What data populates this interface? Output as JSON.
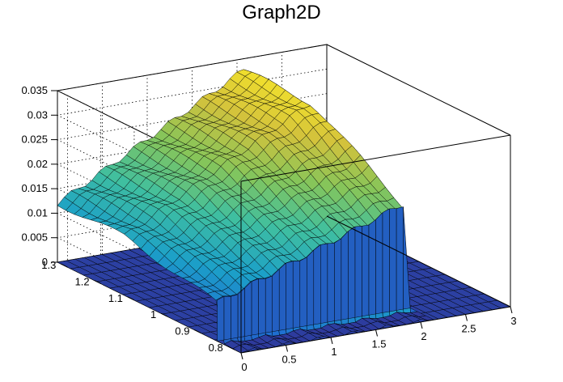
{
  "chart_data": {
    "type": "surface3d",
    "title": "Graph2D",
    "x": {
      "label": "",
      "range": [
        0,
        3
      ],
      "ticks": [
        "0",
        "0.5",
        "1",
        "1.5",
        "2",
        "2.5",
        "3"
      ]
    },
    "y": {
      "label": "",
      "range": [
        0.78,
        1.33
      ],
      "ticks": [
        "0.8",
        "0.9",
        "1",
        "1.1",
        "1.2",
        "1.3"
      ]
    },
    "z": {
      "label": "",
      "range": [
        0,
        0.035
      ],
      "ticks": [
        "0",
        "0.005",
        "0.01",
        "0.015",
        "0.02",
        "0.025",
        "0.03",
        "0.035"
      ]
    },
    "grid": true,
    "colormap": "viridis-like (blue to yellow)",
    "colors": [
      "#2e3a9c",
      "#1f6fd1",
      "#1ca0c8",
      "#3fbfa0",
      "#86c55a",
      "#d3c23c",
      "#f6e52a"
    ],
    "surface_profile_y_1": {
      "x": [
        0,
        0.1,
        0.2,
        0.3,
        0.4,
        0.5,
        0.6,
        0.7,
        0.8,
        0.9,
        1.0,
        1.1,
        1.2,
        1.3,
        1.4,
        1.5,
        1.6,
        1.7,
        1.8,
        1.9,
        2.0,
        2.1
      ],
      "z": [
        0.012,
        0.013,
        0.014,
        0.015,
        0.016,
        0.017,
        0.018,
        0.019,
        0.02,
        0.021,
        0.022,
        0.023,
        0.024,
        0.025,
        0.026,
        0.027,
        0.028,
        0.029,
        0.03,
        0.031,
        0.032,
        0.033
      ]
    },
    "notes": "Surface nonzero for x in [0, ~2.1]; near-zero flat region for x > 2.1. Values near y edges drop off."
  }
}
